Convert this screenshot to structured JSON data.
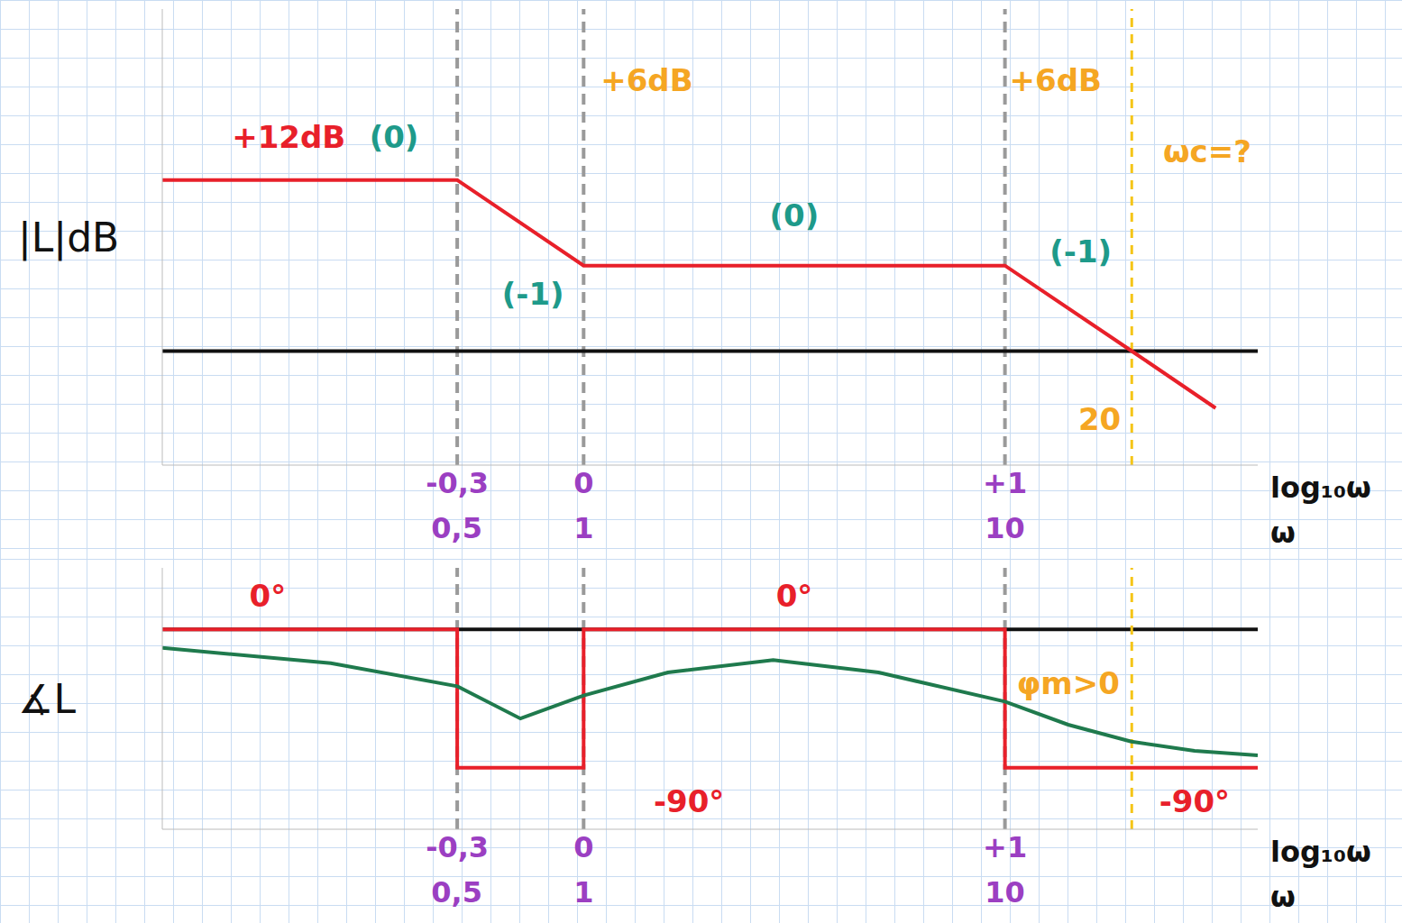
{
  "chart_data": [
    {
      "type": "line",
      "ylabel": "|L|dB",
      "xlabel": "log₁₀ω",
      "x2label": "ω",
      "xlim": [
        -1,
        1.6
      ],
      "xticks": [
        {
          "value": -0.3,
          "label": "-0,3"
        },
        0,
        {
          "value": 1,
          "label": "+1"
        }
      ],
      "x2lim": [
        -1,
        1.6
      ],
      "x2ticks": [
        {
          "value": -0.30103,
          "label": "0,5"
        },
        {
          "value": 0,
          "label": "1"
        },
        {
          "value": 1,
          "label": "10"
        }
      ],
      "ylim": [
        -8,
        24
      ],
      "yticks": [
        0
      ],
      "tick_labels": "x",
      "grid": true,
      "series": [
        {
          "color": "#e8202a",
          "x": [
            -1,
            -0.3,
            0,
            1,
            1.301,
            1.5
          ],
          "values": [
            12,
            12,
            6,
            6,
            0,
            -4
          ]
        }
      ],
      "crossover": {
        "x": 1.301,
        "label": "20"
      },
      "annotations": [
        {
          "text": "+12dB",
          "x": -0.7,
          "y": 15,
          "color": "#e8202a"
        },
        {
          "text": "(0)",
          "x": -0.45,
          "y": 15,
          "color": "#1e9a8a"
        },
        {
          "text": "(-1)",
          "x": -0.12,
          "y": 4,
          "color": "#1e9a8a"
        },
        {
          "text": "+6dB",
          "x": 0.15,
          "y": 19,
          "color": "#f5a623"
        },
        {
          "text": "(0)",
          "x": 0.5,
          "y": 9.5,
          "color": "#1e9a8a"
        },
        {
          "text": "+6dB",
          "x": 1.12,
          "y": 19,
          "color": "#f5a623"
        },
        {
          "text": "(-1)",
          "x": 1.18,
          "y": 7,
          "color": "#1e9a8a"
        },
        {
          "text": "ωc=?",
          "x": 1.48,
          "y": 14,
          "color": "#f5a623"
        }
      ]
    },
    {
      "type": "line",
      "ylabel": "∡L",
      "xlabel": "log₁₀ω",
      "x2label": "ω",
      "xlim": [
        -1,
        1.6
      ],
      "xticks": [
        {
          "value": -0.3,
          "label": "-0,3"
        },
        0,
        {
          "value": 1,
          "label": "+1"
        }
      ],
      "x2lim": [
        -1,
        1.6
      ],
      "x2ticks": [
        {
          "value": -0.30103,
          "label": "0,5"
        },
        {
          "value": 0,
          "label": "1"
        },
        {
          "value": 1,
          "label": "10"
        }
      ],
      "ylim": [
        -130,
        40
      ],
      "yticks": [
        0
      ],
      "tick_labels": "x",
      "grid": true,
      "series": [
        {
          "color": "#e8202a",
          "line_style": "step",
          "x": [
            -1,
            -0.3,
            0,
            1,
            1.6
          ],
          "values": [
            0,
            -90,
            0,
            -90,
            -90
          ]
        },
        {
          "color": "#1f7a4d",
          "line_style": "solid",
          "x": [
            -1,
            -0.6,
            -0.3,
            -0.15,
            0,
            0.2,
            0.45,
            0.7,
            1,
            1.15,
            1.3,
            1.45,
            1.6
          ],
          "values": [
            -12,
            -22,
            -37,
            -58,
            -43,
            -28,
            -20,
            -28,
            -47,
            -62,
            -73,
            -79,
            -82
          ]
        }
      ],
      "crossover": {
        "x": 1.301
      },
      "annotations": [
        {
          "text": "0°",
          "x": -0.75,
          "y": 22,
          "color": "#e8202a"
        },
        {
          "text": "0°",
          "x": 0.5,
          "y": 22,
          "color": "#e8202a"
        },
        {
          "text": "φm>0",
          "x": 1.15,
          "y": -35,
          "color": "#f5a623"
        },
        {
          "text": "-90°",
          "x": 0.25,
          "y": -112,
          "color": "#e8202a"
        },
        {
          "text": "-90°",
          "x": 1.45,
          "y": -112,
          "color": "#e8202a"
        }
      ]
    }
  ]
}
